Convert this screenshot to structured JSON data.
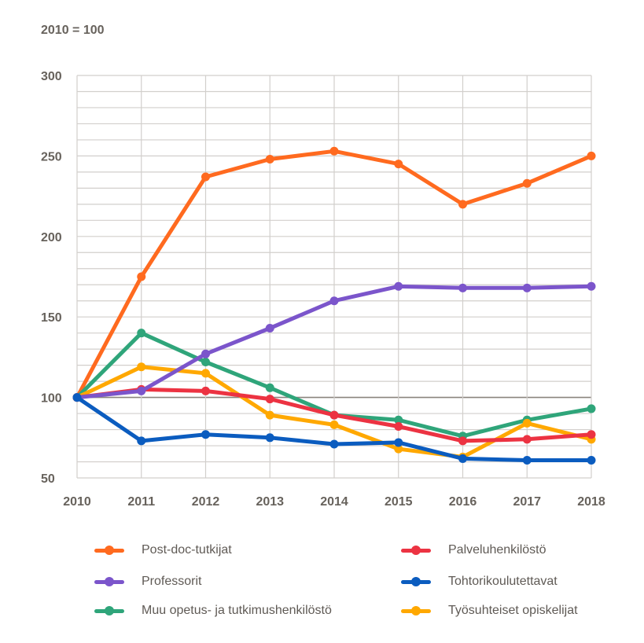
{
  "chart_data": {
    "type": "line",
    "subtitle": "2010 = 100",
    "x": [
      "2010",
      "2011",
      "2012",
      "2013",
      "2014",
      "2015",
      "2016",
      "2017",
      "2018"
    ],
    "ylim": [
      50,
      300
    ],
    "yticks": [
      "300",
      "250",
      "200",
      "150",
      "100",
      "50"
    ],
    "ytick_values": [
      300,
      250,
      200,
      150,
      100,
      50
    ],
    "grid_step": 10,
    "reference_line": 100,
    "grid": true,
    "legend_position": "bottom",
    "series": [
      {
        "name": "Post-doc-tutkijat",
        "color": "#ff6a1f",
        "values": [
          100,
          175,
          237,
          248,
          253,
          245,
          220,
          233,
          250
        ]
      },
      {
        "name": "Professorit",
        "color": "#7b55cb",
        "values": [
          100,
          104,
          127,
          143,
          160,
          169,
          168,
          168,
          169
        ]
      },
      {
        "name": "Muu opetus- ja tutkimushenkilöstö",
        "color": "#2fa57a",
        "values": [
          100,
          140,
          122,
          106,
          89,
          86,
          76,
          86,
          93
        ]
      },
      {
        "name": "Palveluhenkilöstö",
        "color": "#ec3342",
        "values": [
          100,
          105,
          104,
          99,
          89,
          82,
          73,
          74,
          77
        ]
      },
      {
        "name": "Tohtorikoulutettavat",
        "color": "#0b5cbf",
        "values": [
          100,
          73,
          77,
          75,
          71,
          72,
          62,
          61,
          61
        ]
      },
      {
        "name": "Työsuhteiset opiskelijat",
        "color": "#ffa800",
        "values": [
          100,
          119,
          115,
          89,
          83,
          68,
          63,
          84,
          74
        ]
      }
    ]
  }
}
